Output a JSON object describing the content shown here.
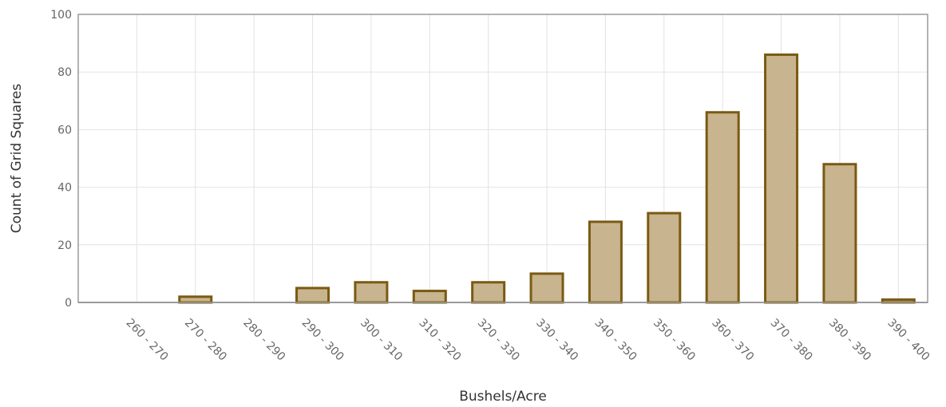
{
  "chart_data": {
    "type": "bar",
    "title": "",
    "xlabel": "Bushels/Acre",
    "ylabel": "Count of Grid Squares",
    "ylim": [
      0,
      100
    ],
    "yticks": [
      0,
      20,
      40,
      60,
      80,
      100
    ],
    "grid": true,
    "categories": [
      "260 - 270",
      "270 - 280",
      "280 - 290",
      "290 - 300",
      "300 - 310",
      "310 - 320",
      "320 - 330",
      "330 - 340",
      "340 - 350",
      "350 - 360",
      "360 - 370",
      "370 - 380",
      "380 - 390",
      "390 - 400"
    ],
    "values": [
      0,
      2,
      0,
      5,
      7,
      4,
      7,
      10,
      28,
      31,
      66,
      86,
      48,
      1
    ],
    "colors": {
      "bar_fill": "#c8b48e",
      "bar_stroke": "#7a5a12",
      "grid": "#e2e2e2",
      "axis": "#9a9a9a"
    }
  }
}
